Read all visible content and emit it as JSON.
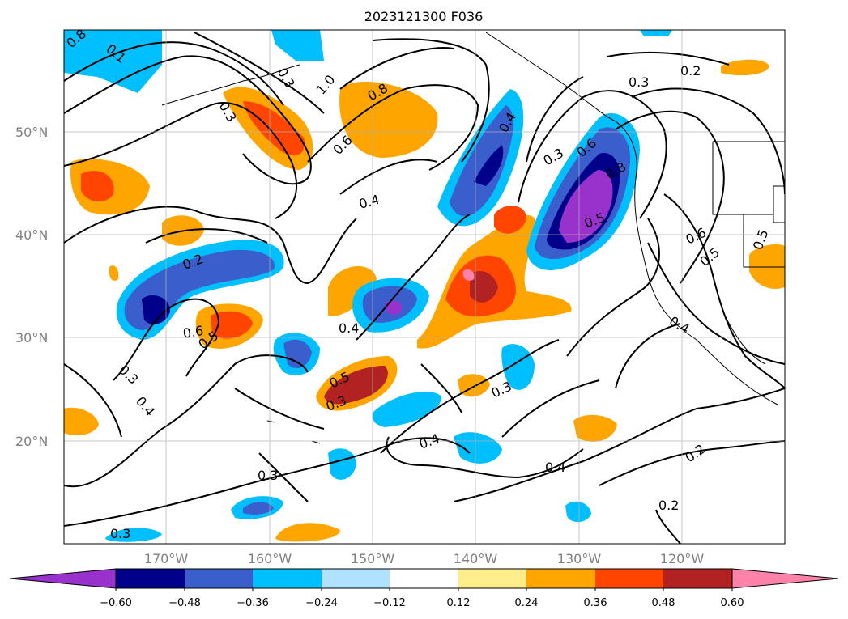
{
  "title": "2023121300 F036",
  "map": {
    "lat_labels": [
      {
        "text": "50°N",
        "value": 50
      },
      {
        "text": "40°N",
        "value": 40
      },
      {
        "text": "30°N",
        "value": 30
      },
      {
        "text": "20°N",
        "value": 20
      }
    ],
    "lon_labels": [
      {
        "text": "170°W",
        "value": -170
      },
      {
        "text": "160°W",
        "value": -160
      },
      {
        "text": "150°W",
        "value": -150
      },
      {
        "text": "140°W",
        "value": -140
      },
      {
        "text": "130°W",
        "value": -130
      },
      {
        "text": "120°W",
        "value": -120
      }
    ],
    "gridlines": true,
    "contour_labels": [
      "0.8",
      "0.1",
      "1.0",
      "0.8",
      "0.3",
      "0.6",
      "0.4",
      "0.4",
      "0.3",
      "0.6",
      "0.8",
      "0.5",
      "0.3",
      "0.2",
      "0.6",
      "0.5",
      "0.5",
      "0.2",
      "0.6",
      "0.5",
      "0.4",
      "0.4",
      "0.5",
      "0.3",
      "0.3",
      "0.4",
      "0.4",
      "0.3",
      "0.2",
      "0.3",
      "0.4",
      "0.2",
      "0.3",
      "0.3"
    ]
  },
  "colorbar": {
    "ticks": [
      "−0.60",
      "−0.48",
      "−0.36",
      "−0.24",
      "−0.12",
      "0.12",
      "0.24",
      "0.36",
      "0.48",
      "0.60"
    ],
    "colors": [
      "#9932cc",
      "#00008b",
      "#3a5fcd",
      "#00bfff",
      "#b0e2ff",
      "#ffffff",
      "#ffec8b",
      "#ffa500",
      "#ff4500",
      "#b22222",
      "#ff82ab"
    ]
  }
}
